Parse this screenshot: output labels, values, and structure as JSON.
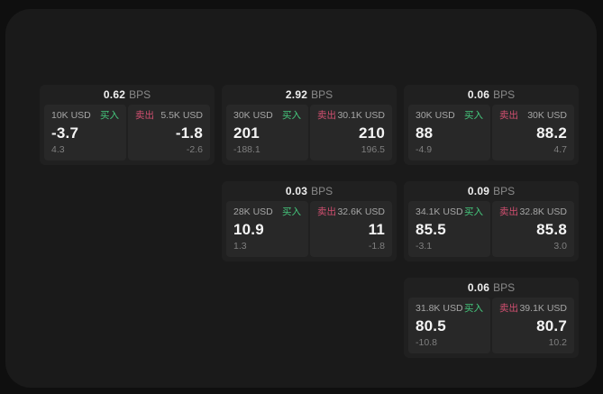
{
  "labels": {
    "bps_unit": "BPS",
    "buy": "买入",
    "sell": "卖出"
  },
  "colors": {
    "panel_bg": "#1a1a1a",
    "card_bg": "#202020",
    "side_panel_bg": "#282828",
    "buy_green": "#45c87d",
    "sell_red": "#d14f70"
  },
  "cards": [
    {
      "bps": "0.62",
      "buy": {
        "amount": "10K USD",
        "price": "-3.7",
        "delta": "4.3"
      },
      "sell": {
        "amount": "5.5K USD",
        "price": "-1.8",
        "delta": "-2.6"
      }
    },
    {
      "bps": "2.92",
      "buy": {
        "amount": "30K USD",
        "price": "201",
        "delta": "-188.1"
      },
      "sell": {
        "amount": "30.1K USD",
        "price": "210",
        "delta": "196.5"
      }
    },
    {
      "bps": "0.06",
      "buy": {
        "amount": "30K USD",
        "price": "88",
        "delta": "-4.9"
      },
      "sell": {
        "amount": "30K USD",
        "price": "88.2",
        "delta": "4.7"
      }
    },
    {
      "bps": "0.03",
      "buy": {
        "amount": "28K USD",
        "price": "10.9",
        "delta": "1.3"
      },
      "sell": {
        "amount": "32.6K USD",
        "price": "11",
        "delta": "-1.8"
      }
    },
    {
      "bps": "0.09",
      "buy": {
        "amount": "34.1K USD",
        "price": "85.5",
        "delta": "-3.1"
      },
      "sell": {
        "amount": "32.8K USD",
        "price": "85.8",
        "delta": "3.0"
      }
    },
    {
      "bps": "0.06",
      "buy": {
        "amount": "31.8K USD",
        "price": "80.5",
        "delta": "-10.8"
      },
      "sell": {
        "amount": "39.1K USD",
        "price": "80.7",
        "delta": "10.2"
      }
    }
  ]
}
